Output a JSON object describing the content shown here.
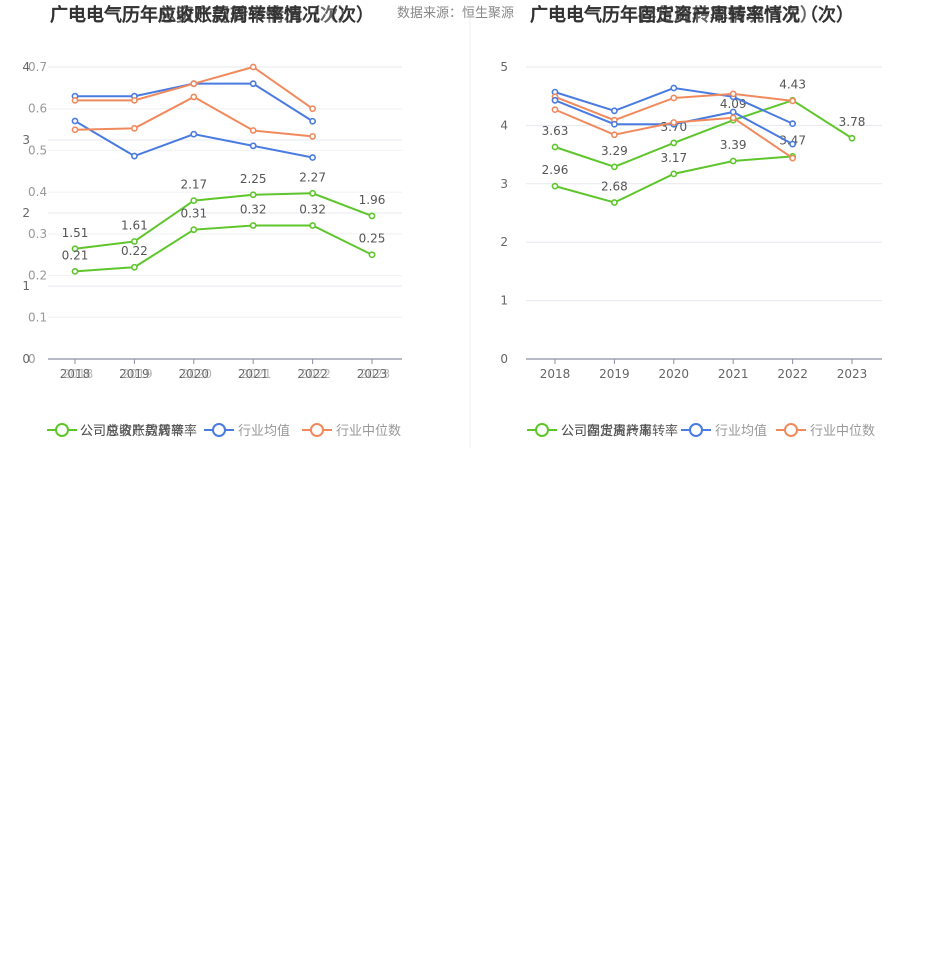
{
  "source_text": "数据来源：恒生聚源",
  "colors": {
    "company": "#5ec62b",
    "mean": "#4a7be0",
    "median": "#f08a5d",
    "grid": "#e6e8f0",
    "axis": "#8c8fa3"
  },
  "chart_data": [
    {
      "type": "line",
      "title": "广电电气历年应收账款周转率情况（次）",
      "title_ghost": "广电电气历年总资产周转率情况（次）",
      "x": [
        "2018",
        "2019",
        "2020",
        "2021",
        "2022",
        "2023"
      ],
      "ylim": [
        0,
        4
      ],
      "yticks": [
        "0",
        "1",
        "2",
        "3",
        "4"
      ],
      "ylim_ghost": [
        0,
        0.7
      ],
      "yticks_ghost": [
        "0",
        "0.1",
        "0.2",
        "0.3",
        "0.4",
        "0.5",
        "0.6",
        "0.7"
      ],
      "series": [
        {
          "name": "公司应收账款周转率",
          "role": "company",
          "axis": "primary",
          "values": [
            1.51,
            1.61,
            2.17,
            2.25,
            2.27,
            1.96
          ],
          "labels": [
            "1.51",
            "1.61",
            "2.17",
            "2.25",
            "2.27",
            "1.96"
          ]
        },
        {
          "name": "行业均值",
          "role": "mean",
          "axis": "primary",
          "values": [
            3.26,
            2.78,
            3.08,
            2.92,
            2.76,
            null
          ]
        },
        {
          "name": "行业中位数",
          "role": "median",
          "axis": "primary",
          "values": [
            3.14,
            3.16,
            3.59,
            3.13,
            3.05,
            null
          ]
        },
        {
          "name": "公司总资产周转率",
          "role": "company",
          "axis": "ghost",
          "values": [
            0.21,
            0.22,
            0.31,
            0.32,
            0.32,
            0.25
          ],
          "labels": [
            "0.21",
            "0.22",
            "0.31",
            "0.32",
            "0.32",
            "0.25"
          ]
        },
        {
          "name": "行业均值",
          "role": "mean",
          "axis": "ghost",
          "values": [
            0.63,
            0.63,
            0.66,
            0.66,
            0.57,
            null
          ]
        },
        {
          "name": "行业中位数",
          "role": "median",
          "axis": "ghost",
          "values": [
            0.62,
            0.62,
            0.66,
            0.7,
            0.6,
            null
          ]
        }
      ],
      "legend": [
        "公司应收账款周转率",
        "行业均值",
        "行业中位数"
      ],
      "legend_ghost": [
        "公司总资产周转率",
        "行业均值",
        "行业中位数"
      ],
      "legend_position": "bottom",
      "grid": true
    },
    {
      "type": "line",
      "title": "广电电气历年固定资产周转率情况（次）",
      "title_ghost": "广电电气历年存货周转率情况（次）",
      "x": [
        "2018",
        "2019",
        "2020",
        "2021",
        "2022",
        "2023"
      ],
      "ylim": [
        0,
        5
      ],
      "yticks": [
        "0",
        "1",
        "2",
        "3",
        "4",
        "5"
      ],
      "series": [
        {
          "name": "公司固定资产周转率",
          "role": "company",
          "axis": "primary",
          "values": [
            3.63,
            3.29,
            3.7,
            4.09,
            4.43,
            3.78
          ],
          "labels": [
            "3.63",
            "3.29",
            "3.70",
            "4.09",
            "4.43",
            "3.78"
          ]
        },
        {
          "name": "行业均值",
          "role": "mean",
          "axis": "primary",
          "values": [
            4.57,
            4.25,
            4.64,
            4.49,
            4.03,
            null
          ]
        },
        {
          "name": "行业中位数",
          "role": "median",
          "axis": "primary",
          "values": [
            4.49,
            4.09,
            4.47,
            4.54,
            4.42,
            null
          ]
        },
        {
          "name": "公司存货周转率",
          "role": "company",
          "axis": "primary",
          "values": [
            2.96,
            2.68,
            3.17,
            3.39,
            3.47,
            null
          ],
          "labels": [
            "2.96",
            "2.68",
            "3.17",
            "3.39",
            "3.47",
            ""
          ]
        },
        {
          "name": "行业均值",
          "role": "mean",
          "axis": "primary",
          "values": [
            4.43,
            4.02,
            4.02,
            4.23,
            3.68,
            null
          ]
        },
        {
          "name": "行业中位数",
          "role": "median",
          "axis": "primary",
          "values": [
            4.27,
            3.84,
            4.05,
            4.13,
            3.44,
            null
          ]
        }
      ],
      "legend": [
        "公司固定资产周转率",
        "行业均值",
        "行业中位数"
      ],
      "legend_ghost": [
        "公司存货周转率",
        "行业均值",
        "行业中位数"
      ],
      "legend_position": "bottom",
      "grid": true
    }
  ]
}
